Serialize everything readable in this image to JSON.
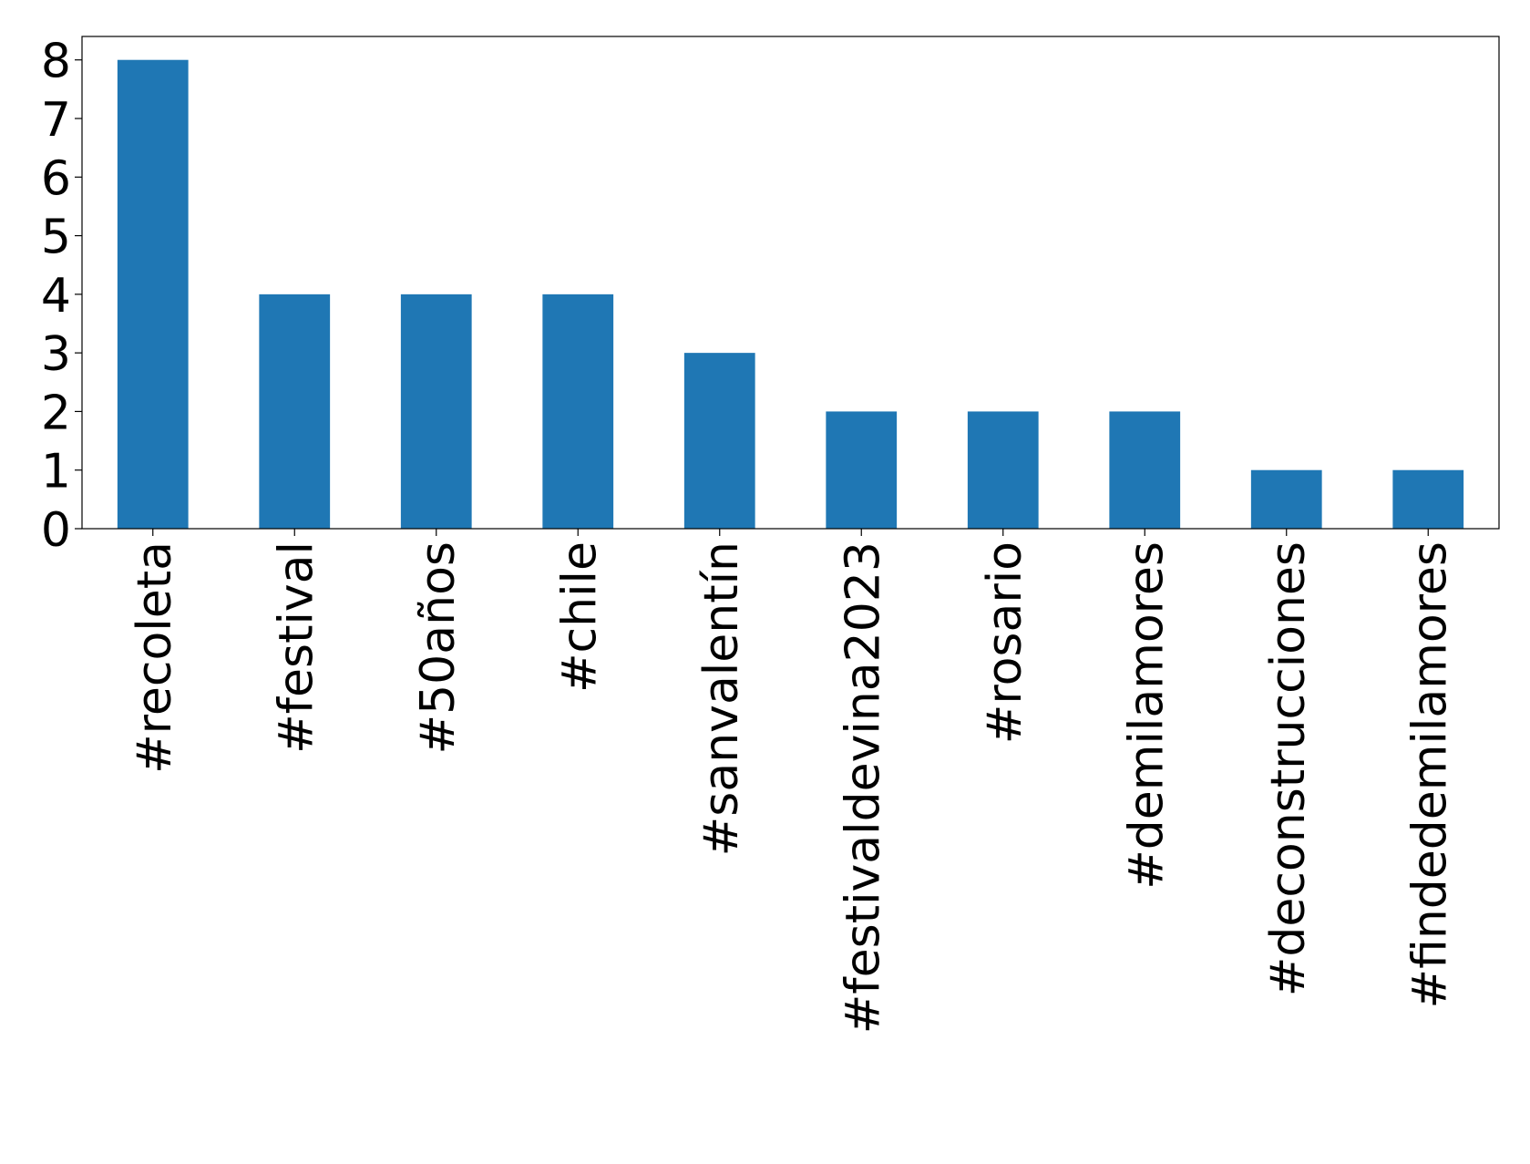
{
  "chart_data": {
    "type": "bar",
    "categories": [
      "#recoleta",
      "#festival",
      "#50años",
      "#chile",
      "#sanvalentín",
      "#festivaldevina2023",
      "#rosario",
      "#demilamores",
      "#deconstrucciones",
      "#findedemilamores"
    ],
    "values": [
      8,
      4,
      4,
      4,
      3,
      2,
      2,
      2,
      1,
      1
    ],
    "color": "#1f77b4",
    "ylim": [
      0,
      8.4
    ],
    "yticks": [
      0,
      1,
      2,
      3,
      4,
      5,
      6,
      7,
      8
    ],
    "grid": false
  }
}
